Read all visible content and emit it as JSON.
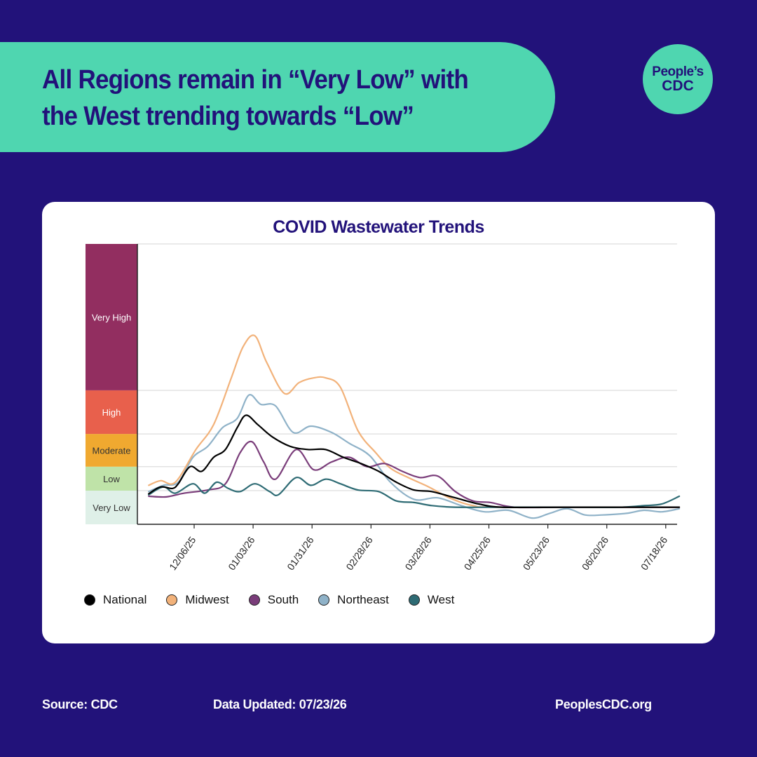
{
  "headline": "All Regions remain in “Very Low” with the West trending towards  “Low”",
  "logo": {
    "line1": "People’s",
    "line2": "CDC"
  },
  "footer": {
    "source": "Source: CDC",
    "updated": "Data Updated: 07/23/26",
    "site": "PeoplesCDC.org"
  },
  "chart_data": {
    "type": "line",
    "title": "COVID Wastewater Trends",
    "xlabel": "",
    "ylabel": "",
    "ylim": [
      0,
      9
    ],
    "x_tick_labels": [
      "12/06/25",
      "01/03/26",
      "01/31/26",
      "02/28/26",
      "03/28/26",
      "04/25/26",
      "05/23/26",
      "06/20/26",
      "07/18/26"
    ],
    "levels": [
      {
        "label": "Very Low",
        "from": 0,
        "to": 1.08,
        "color": "#dff0e8",
        "text_color": "#333333"
      },
      {
        "label": "Low",
        "from": 1.08,
        "to": 1.85,
        "color": "#bfe3a8",
        "text_color": "#333333"
      },
      {
        "label": "Moderate",
        "from": 1.85,
        "to": 2.9,
        "color": "#f0a930",
        "text_color": "#333333"
      },
      {
        "label": "High",
        "from": 2.9,
        "to": 4.3,
        "color": "#e8604c",
        "text_color": "#ffffff"
      },
      {
        "label": "Very High",
        "from": 4.3,
        "to": 9,
        "color": "#922e60",
        "text_color": "#ffffff"
      }
    ],
    "grid": true,
    "legend_position": "bottom-left",
    "series": [
      {
        "name": "National",
        "color": "#000000",
        "values": [
          [
            0,
            0.98
          ],
          [
            0.2,
            1.2
          ],
          [
            0.4,
            1.15
          ],
          [
            0.5,
            1.3
          ],
          [
            0.7,
            1.85
          ],
          [
            0.9,
            1.7
          ],
          [
            1.1,
            2.15
          ],
          [
            1.3,
            2.4
          ],
          [
            1.5,
            3.1
          ],
          [
            1.65,
            3.5
          ],
          [
            1.85,
            3.2
          ],
          [
            2.1,
            2.8
          ],
          [
            2.4,
            2.5
          ],
          [
            2.7,
            2.4
          ],
          [
            3.0,
            2.4
          ],
          [
            3.3,
            2.15
          ],
          [
            3.6,
            1.95
          ],
          [
            3.9,
            1.7
          ],
          [
            4.2,
            1.35
          ],
          [
            4.5,
            1.1
          ],
          [
            4.8,
            1.05
          ],
          [
            5.2,
            0.85
          ],
          [
            5.6,
            0.65
          ],
          [
            6,
            0.55
          ],
          [
            7,
            0.55
          ],
          [
            8,
            0.55
          ],
          [
            9,
            0.55
          ]
        ]
      },
      {
        "name": "Midwest",
        "color": "#f2b27a",
        "values": [
          [
            0,
            1.25
          ],
          [
            0.2,
            1.4
          ],
          [
            0.45,
            1.35
          ],
          [
            0.8,
            2.4
          ],
          [
            1.1,
            3.2
          ],
          [
            1.4,
            4.7
          ],
          [
            1.6,
            5.7
          ],
          [
            1.8,
            6.05
          ],
          [
            2.0,
            5.2
          ],
          [
            2.3,
            4.2
          ],
          [
            2.55,
            4.55
          ],
          [
            2.8,
            4.7
          ],
          [
            3.0,
            4.7
          ],
          [
            3.25,
            4.4
          ],
          [
            3.55,
            3.0
          ],
          [
            3.85,
            2.3
          ],
          [
            4.1,
            1.8
          ],
          [
            4.4,
            1.5
          ],
          [
            4.75,
            1.2
          ],
          [
            5.1,
            0.85
          ],
          [
            5.5,
            0.6
          ],
          [
            6,
            0.55
          ],
          [
            9,
            0.55
          ]
        ]
      },
      {
        "name": "South",
        "color": "#7a3d7a",
        "values": [
          [
            0,
            0.9
          ],
          [
            0.3,
            0.88
          ],
          [
            0.6,
            1.0
          ],
          [
            1.0,
            1.1
          ],
          [
            1.3,
            1.3
          ],
          [
            1.55,
            2.3
          ],
          [
            1.75,
            2.65
          ],
          [
            1.95,
            2.0
          ],
          [
            2.15,
            1.45
          ],
          [
            2.5,
            2.4
          ],
          [
            2.8,
            1.75
          ],
          [
            3.1,
            2.0
          ],
          [
            3.4,
            2.15
          ],
          [
            3.7,
            1.85
          ],
          [
            4.0,
            1.95
          ],
          [
            4.3,
            1.7
          ],
          [
            4.6,
            1.5
          ],
          [
            4.9,
            1.55
          ],
          [
            5.2,
            1.05
          ],
          [
            5.5,
            0.75
          ],
          [
            5.8,
            0.7
          ],
          [
            6.2,
            0.55
          ],
          [
            7,
            0.55
          ],
          [
            8,
            0.55
          ],
          [
            9,
            0.55
          ]
        ]
      },
      {
        "name": "Northeast",
        "color": "#8fb2c8",
        "values": [
          [
            0,
            1.05
          ],
          [
            0.25,
            1.25
          ],
          [
            0.5,
            1.35
          ],
          [
            0.75,
            2.15
          ],
          [
            1.0,
            2.5
          ],
          [
            1.25,
            3.1
          ],
          [
            1.5,
            3.4
          ],
          [
            1.7,
            4.15
          ],
          [
            1.9,
            3.85
          ],
          [
            2.15,
            3.8
          ],
          [
            2.45,
            2.95
          ],
          [
            2.75,
            3.15
          ],
          [
            3.1,
            2.95
          ],
          [
            3.4,
            2.6
          ],
          [
            3.75,
            2.2
          ],
          [
            4.1,
            1.35
          ],
          [
            4.5,
            0.8
          ],
          [
            4.9,
            0.85
          ],
          [
            5.3,
            0.6
          ],
          [
            5.7,
            0.4
          ],
          [
            6.1,
            0.45
          ],
          [
            6.5,
            0.2
          ],
          [
            6.8,
            0.35
          ],
          [
            7.1,
            0.5
          ],
          [
            7.4,
            0.3
          ],
          [
            7.7,
            0.3
          ],
          [
            8.1,
            0.35
          ],
          [
            8.4,
            0.45
          ],
          [
            8.7,
            0.4
          ],
          [
            9,
            0.5
          ]
        ]
      },
      {
        "name": "West",
        "color": "#2e6b74",
        "values": [
          [
            0,
            0.95
          ],
          [
            0.25,
            1.2
          ],
          [
            0.45,
            1.0
          ],
          [
            0.75,
            1.3
          ],
          [
            0.95,
            1.0
          ],
          [
            1.15,
            1.35
          ],
          [
            1.35,
            1.15
          ],
          [
            1.55,
            1.05
          ],
          [
            1.8,
            1.3
          ],
          [
            2.05,
            1.05
          ],
          [
            2.2,
            0.95
          ],
          [
            2.5,
            1.5
          ],
          [
            2.75,
            1.25
          ],
          [
            3.0,
            1.45
          ],
          [
            3.25,
            1.3
          ],
          [
            3.55,
            1.1
          ],
          [
            3.9,
            1.05
          ],
          [
            4.2,
            0.75
          ],
          [
            4.5,
            0.7
          ],
          [
            4.8,
            0.6
          ],
          [
            5.2,
            0.55
          ],
          [
            6,
            0.55
          ],
          [
            7,
            0.55
          ],
          [
            8,
            0.55
          ],
          [
            8.4,
            0.6
          ],
          [
            8.7,
            0.65
          ],
          [
            9,
            0.9
          ]
        ]
      }
    ]
  }
}
